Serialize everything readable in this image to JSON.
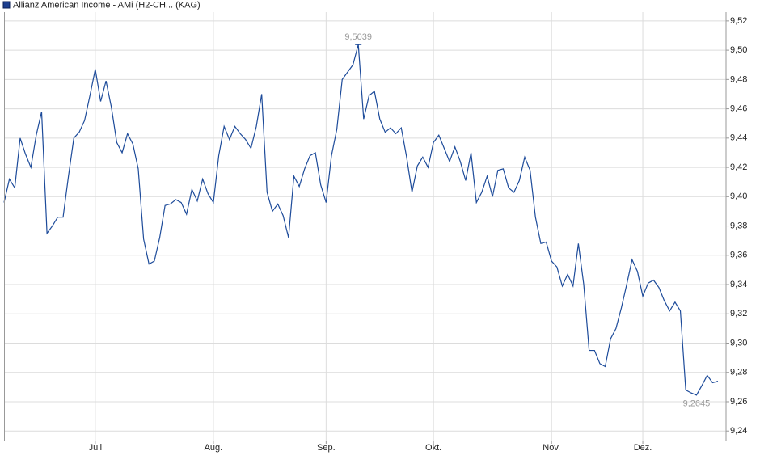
{
  "chart_data": {
    "type": "line",
    "series": [
      {
        "name": "Allianz American Income - AMi (H2-CH... (KAG)",
        "color": "#1d4b9a",
        "values": [
          9.396,
          9.412,
          9.406,
          9.44,
          9.429,
          9.42,
          9.442,
          9.458,
          9.375,
          9.38,
          9.386,
          9.386,
          9.414,
          9.44,
          9.444,
          9.452,
          9.469,
          9.487,
          9.465,
          9.479,
          9.461,
          9.437,
          9.43,
          9.443,
          9.436,
          9.419,
          9.371,
          9.354,
          9.356,
          9.372,
          9.394,
          9.395,
          9.398,
          9.396,
          9.388,
          9.405,
          9.397,
          9.412,
          9.402,
          9.396,
          9.428,
          9.448,
          9.439,
          9.448,
          9.443,
          9.439,
          9.433,
          9.448,
          9.47,
          9.403,
          9.39,
          9.395,
          9.387,
          9.372,
          9.414,
          9.407,
          9.419,
          9.428,
          9.43,
          9.408,
          9.396,
          9.428,
          9.446,
          9.48,
          9.485,
          9.49,
          9.5039,
          9.453,
          9.469,
          9.472,
          9.453,
          9.444,
          9.447,
          9.443,
          9.447,
          9.427,
          9.403,
          9.421,
          9.427,
          9.42,
          9.437,
          9.442,
          9.433,
          9.424,
          9.434,
          9.424,
          9.411,
          9.43,
          9.396,
          9.403,
          9.414,
          9.4,
          9.418,
          9.419,
          9.406,
          9.403,
          9.411,
          9.427,
          9.418,
          9.386,
          9.368,
          9.369,
          9.356,
          9.352,
          9.339,
          9.347,
          9.339,
          9.368,
          9.34,
          9.295,
          9.295,
          9.286,
          9.284,
          9.303,
          9.31,
          9.324,
          9.34,
          9.357,
          9.349,
          9.332,
          9.341,
          9.343,
          9.338,
          9.329,
          9.322,
          9.328,
          9.322,
          9.268,
          9.266,
          9.2645,
          9.271,
          9.278,
          9.273,
          9.274
        ]
      }
    ],
    "value_labels": [
      null,
      null,
      null,
      null,
      null,
      null,
      null,
      null,
      null,
      null,
      null,
      null,
      null,
      null,
      null,
      null,
      null,
      null,
      null,
      null,
      null,
      null,
      null,
      null,
      null,
      null,
      null,
      null,
      null,
      null,
      null,
      null,
      null,
      null,
      null,
      null,
      null,
      null,
      null,
      null,
      null,
      null,
      null,
      null,
      null,
      null,
      null,
      null,
      null,
      null,
      null,
      null,
      null,
      null,
      null,
      null,
      null,
      null,
      null,
      null,
      null,
      null,
      null,
      null,
      null,
      null,
      "9,5039",
      null,
      null,
      null,
      null,
      null,
      null,
      null,
      null,
      null,
      null,
      null,
      null,
      null,
      null,
      null,
      null,
      null,
      null,
      null,
      null,
      null,
      null,
      null,
      null,
      null,
      null,
      null,
      null,
      null,
      null,
      null,
      null,
      null,
      null,
      null,
      null,
      null,
      null,
      null,
      null,
      null,
      null,
      null,
      null,
      null,
      null,
      null,
      null,
      null,
      null,
      null,
      null,
      null,
      null,
      null,
      null,
      null,
      null,
      null,
      null,
      null,
      null,
      "9,2645",
      null,
      null,
      null,
      null
    ],
    "categories": [
      null,
      null,
      null,
      null,
      null,
      null,
      null,
      null,
      null,
      null,
      null,
      null,
      null,
      null,
      null,
      null,
      null,
      "Juli",
      null,
      null,
      null,
      null,
      null,
      null,
      null,
      null,
      null,
      null,
      null,
      null,
      null,
      null,
      null,
      null,
      null,
      null,
      null,
      null,
      null,
      "Aug.",
      null,
      null,
      null,
      null,
      null,
      null,
      null,
      null,
      null,
      null,
      null,
      null,
      null,
      null,
      null,
      null,
      null,
      null,
      null,
      null,
      "Sep.",
      null,
      null,
      null,
      null,
      null,
      null,
      null,
      null,
      null,
      null,
      null,
      null,
      null,
      null,
      null,
      null,
      null,
      null,
      null,
      "Okt.",
      null,
      null,
      null,
      null,
      null,
      null,
      null,
      null,
      null,
      null,
      null,
      null,
      null,
      null,
      null,
      null,
      null,
      null,
      null,
      null,
      null,
      "Nov.",
      null,
      null,
      null,
      null,
      null,
      null,
      null,
      null,
      null,
      null,
      null,
      null,
      null,
      null,
      null,
      null,
      "Dez.",
      null,
      null,
      null,
      null,
      null,
      null,
      null,
      null,
      null,
      null,
      null,
      null,
      null,
      null
    ],
    "ylim": [
      9.2335,
      9.526
    ],
    "yticks": [
      {
        "value": 9.24,
        "label": "9,24"
      },
      {
        "value": 9.26,
        "label": "9,26"
      },
      {
        "value": 9.28,
        "label": "9,28"
      },
      {
        "value": 9.3,
        "label": "9,30"
      },
      {
        "value": 9.32,
        "label": "9,32"
      },
      {
        "value": 9.34,
        "label": "9,34"
      },
      {
        "value": 9.36,
        "label": "9,36"
      },
      {
        "value": 9.38,
        "label": "9,38"
      },
      {
        "value": 9.4,
        "label": "9,40"
      },
      {
        "value": 9.42,
        "label": "9,42"
      },
      {
        "value": 9.44,
        "label": "9,44"
      },
      {
        "value": 9.46,
        "label": "9,46"
      },
      {
        "value": 9.48,
        "label": "9,48"
      },
      {
        "value": 9.5,
        "label": "9,50"
      },
      {
        "value": 9.52,
        "label": "9,52"
      }
    ],
    "grid": true
  }
}
